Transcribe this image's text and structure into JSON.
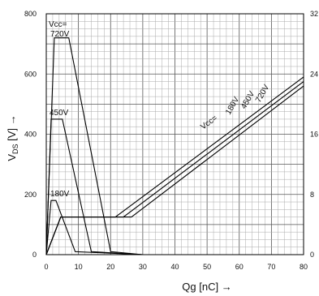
{
  "chart_data": {
    "type": "line",
    "title": "",
    "xlabel": "Qg [nC] →",
    "ylabel": "V",
    "ylabel_sub": "DS",
    "ylabel_unit": " [V] →",
    "xlim": [
      0,
      80
    ],
    "ylim": [
      0,
      800
    ],
    "y2lim": [
      0,
      32
    ],
    "x_ticks": [
      0,
      10,
      20,
      30,
      40,
      50,
      60,
      70,
      80
    ],
    "y_ticks": [
      0,
      200,
      400,
      600,
      800
    ],
    "y2_ticks": [
      0,
      8,
      16,
      24,
      32
    ],
    "grid": true,
    "vcc_label_left": "Vcc=",
    "vcc_label_right": "Vcc=",
    "vds_series": [
      {
        "name": "720V",
        "x": [
          0,
          2.5,
          7,
          20,
          30
        ],
        "y": [
          0,
          720,
          720,
          10,
          0
        ]
      },
      {
        "name": "450V",
        "x": [
          0,
          1.5,
          5,
          14,
          30
        ],
        "y": [
          0,
          450,
          450,
          10,
          0
        ]
      },
      {
        "name": "180V",
        "x": [
          0,
          1.5,
          3,
          9,
          30
        ],
        "y": [
          0,
          180,
          180,
          10,
          0
        ]
      }
    ],
    "vgs_series": [
      {
        "name": "180V",
        "x": [
          0,
          4.5,
          21.5,
          80
        ],
        "y": [
          0,
          5,
          5,
          23.6
        ]
      },
      {
        "name": "450V",
        "x": [
          0,
          4.5,
          24,
          80
        ],
        "y": [
          0,
          5,
          5,
          23
        ]
      },
      {
        "name": "720V",
        "x": [
          0,
          4.5,
          26.5,
          80
        ],
        "y": [
          0,
          5,
          5,
          22.4
        ]
      }
    ],
    "annotations": {
      "left": [
        "720V",
        "450V",
        "180V"
      ],
      "right": [
        "180V",
        "450V",
        "720V"
      ]
    }
  }
}
